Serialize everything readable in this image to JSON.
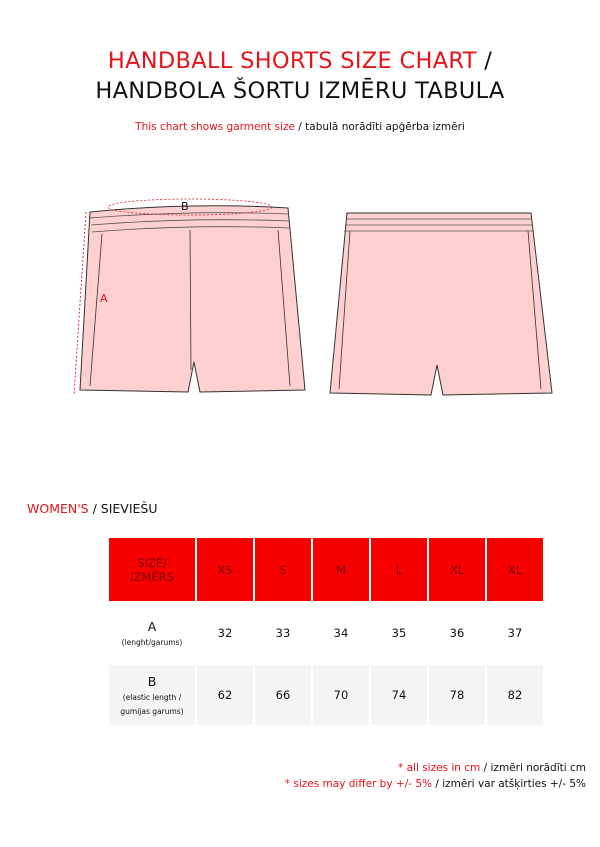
{
  "header": {
    "title_en": "HANDBALL SHORTS SIZE CHART",
    "separator": "/",
    "title_lv": "HANDBOLA ŠORTU IZMĒRU TABULA",
    "subtitle_en": "This chart shows garment size",
    "subtitle_lv": "/ tabulā norādīti apģērba izmēri"
  },
  "illustration": {
    "label_a": "A",
    "label_b": "B",
    "fill": "#ffd0d0"
  },
  "section": {
    "en": "WOMEN'S",
    "lv": "/ SIEVIEŠU"
  },
  "table": {
    "header_line1": "SIZE/",
    "header_line2": "IZMĒRS",
    "sizes": [
      "XS",
      "S",
      "M",
      "L",
      "XL",
      "XL"
    ],
    "rows": [
      {
        "label": "A",
        "sub1": "(lenght/garums)",
        "sub2": "",
        "values": [
          "32",
          "33",
          "34",
          "35",
          "36",
          "37"
        ]
      },
      {
        "label": "B",
        "sub1": "(elastic length /",
        "sub2": "gumijas garums)",
        "values": [
          "62",
          "66",
          "70",
          "74",
          "78",
          "82"
        ]
      }
    ]
  },
  "notes": {
    "n1_red": "* all sizes in cm",
    "n1_black": "/ izmēri norādīti cm",
    "n2_red": "* sizes may differ by +/- 5%",
    "n2_black": "/ izmēri var atšķirties +/- 5%"
  },
  "colors": {
    "accent": "#e5141b",
    "header_fill": "#f60000"
  }
}
